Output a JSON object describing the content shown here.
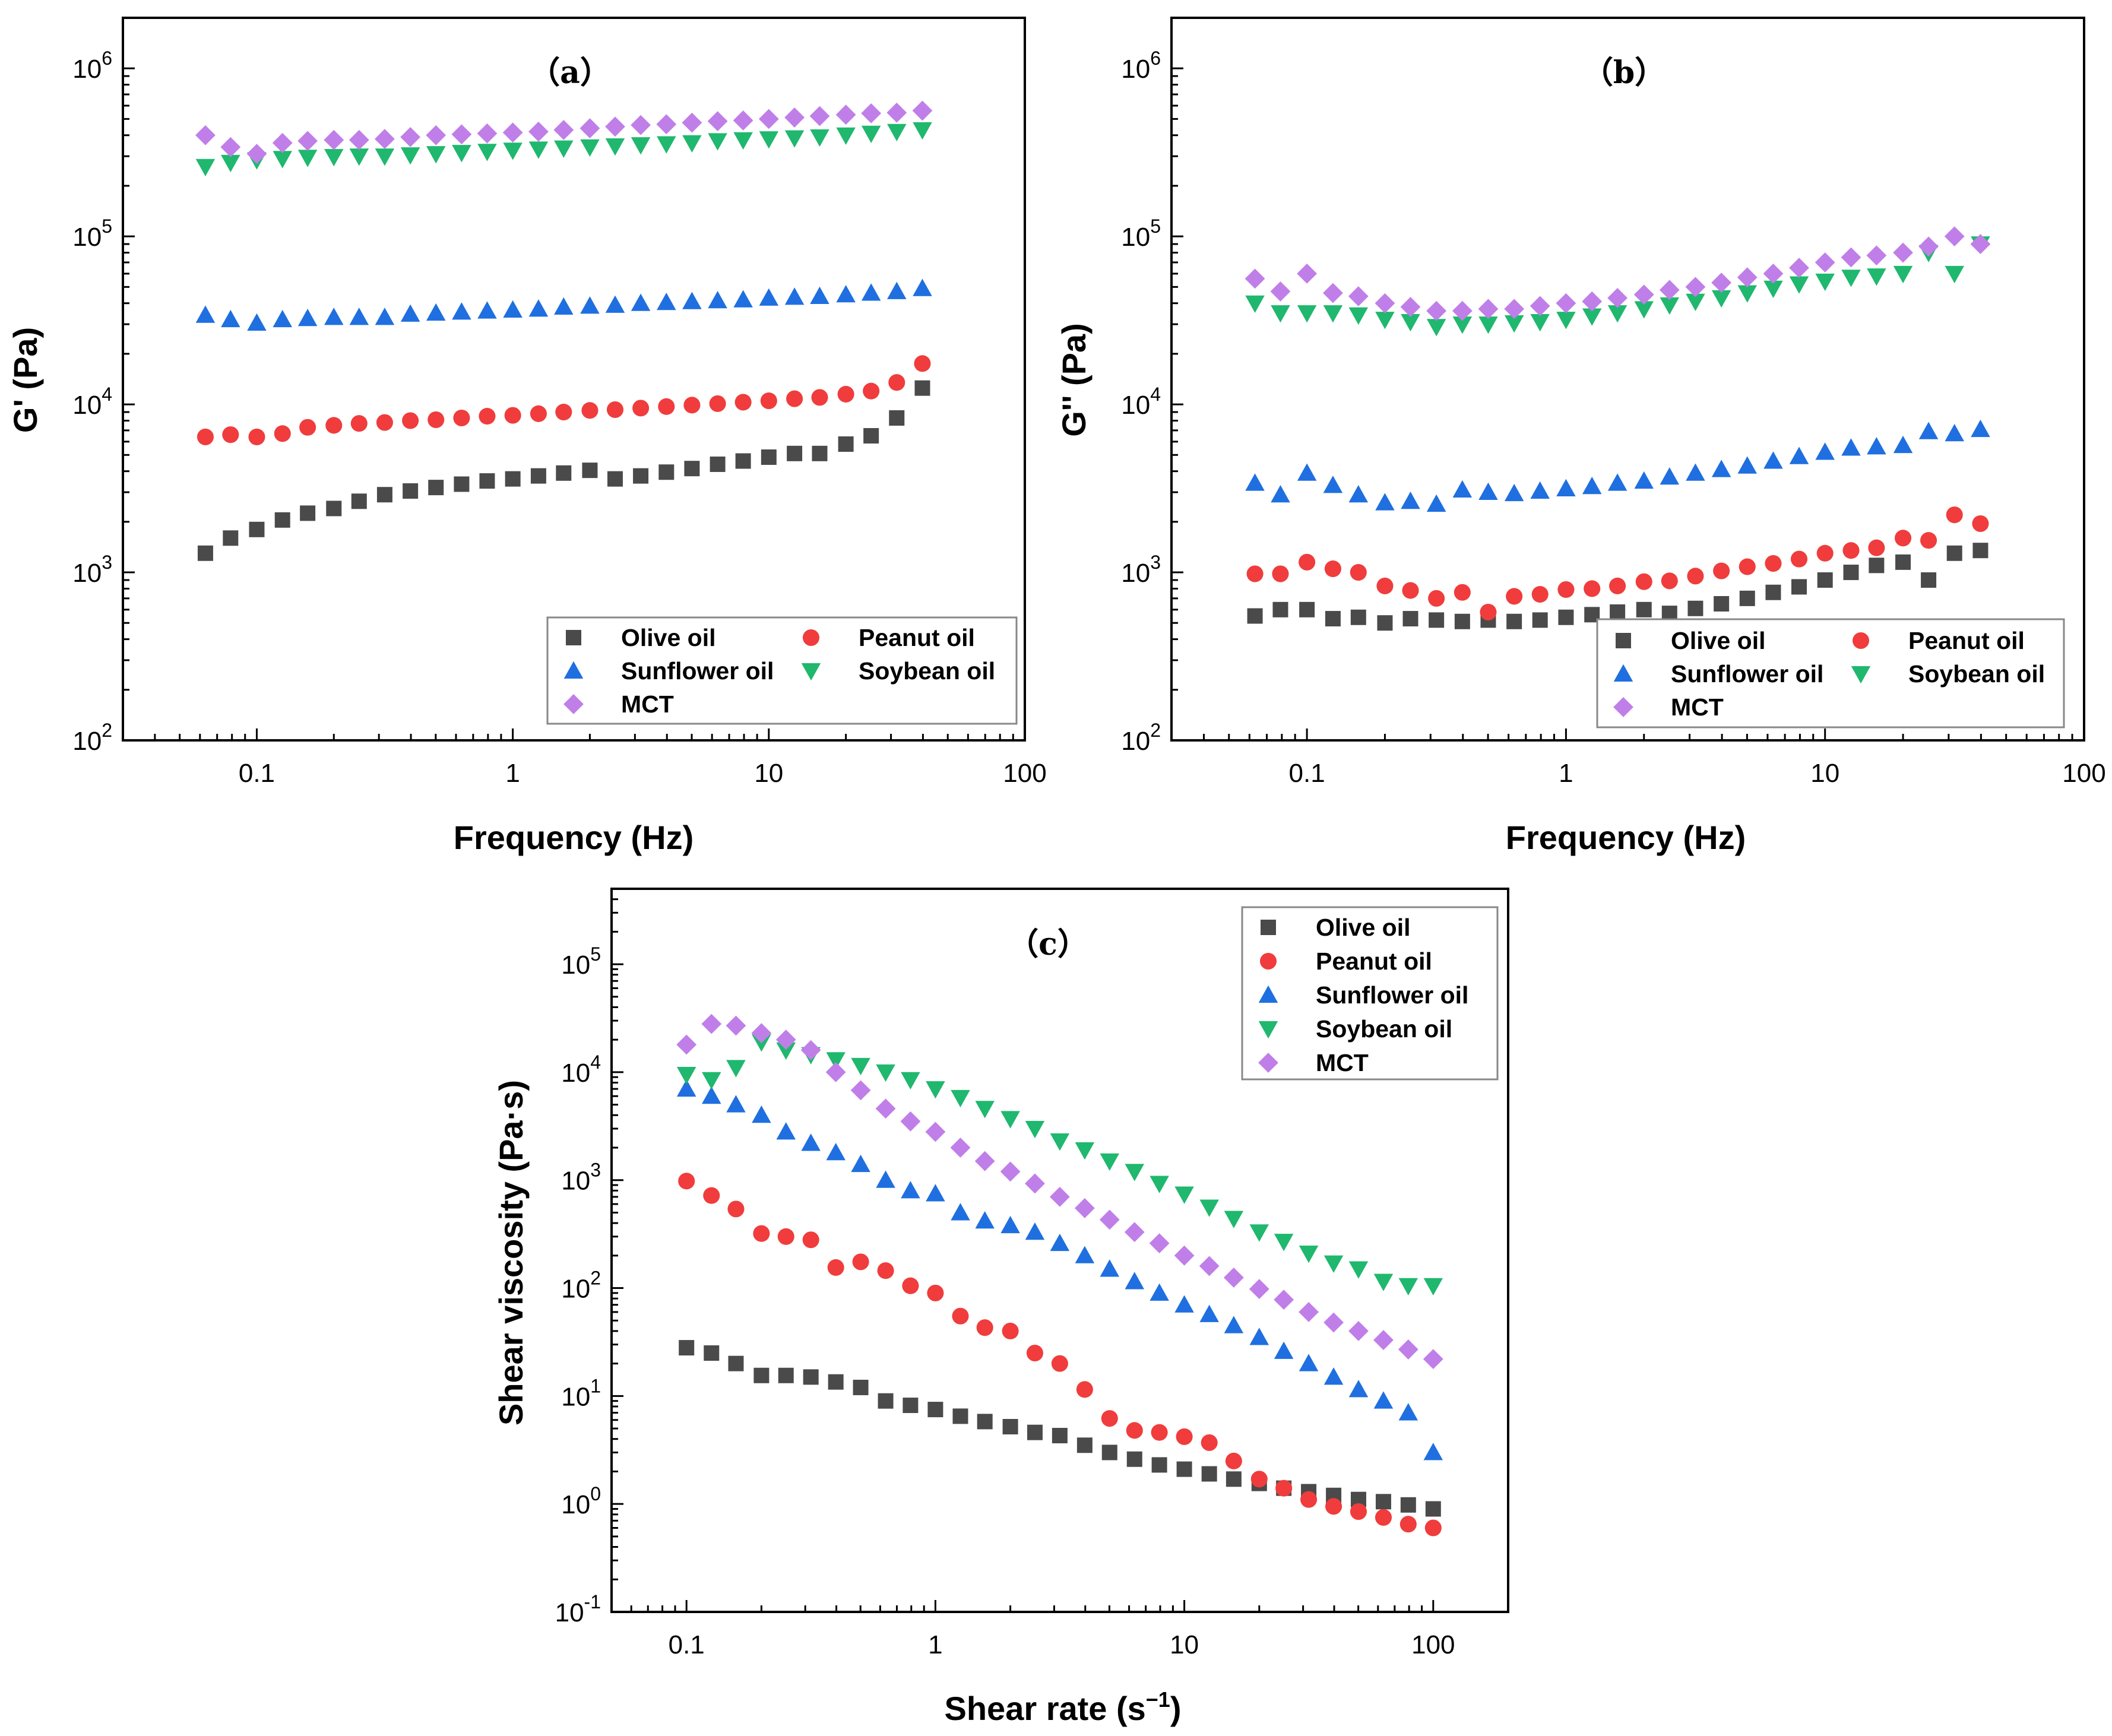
{
  "colors": {
    "olive": "#4a4a4a",
    "peanut": "#f03c3c",
    "sunflower": "#1f6fe0",
    "soybean": "#1fb86e",
    "mct": "#c07fe8"
  },
  "chart_data": [
    {
      "id": "a",
      "type": "scatter",
      "panel_label": "（a）",
      "xlabel": "Frequency (Hz)",
      "ylabel": "G' (Pa)",
      "xscale": "log",
      "yscale": "log",
      "xlim": [
        0.03,
        100
      ],
      "ylim": [
        100,
        2000000
      ],
      "xticks": [
        {
          "value": 0.1,
          "label": "0.1"
        },
        {
          "value": 1,
          "label": "1"
        },
        {
          "value": 10,
          "label": "10"
        },
        {
          "value": 100,
          "label": "100"
        }
      ],
      "yticks": [
        {
          "value": 100,
          "base": "10",
          "exp": "2"
        },
        {
          "value": 1000,
          "base": "10",
          "exp": "3"
        },
        {
          "value": 10000,
          "base": "10",
          "exp": "4"
        },
        {
          "value": 100000,
          "base": "10",
          "exp": "5"
        },
        {
          "value": 1000000,
          "base": "10",
          "exp": "6"
        }
      ],
      "legend_position": "bottom-right",
      "legend_columns": 2,
      "legend_order": [
        "olive",
        "peanut",
        "sunflower",
        "soybean",
        "mct"
      ],
      "x": [
        0.063,
        0.079,
        0.1,
        0.126,
        0.158,
        0.2,
        0.251,
        0.316,
        0.398,
        0.501,
        0.631,
        0.794,
        1.0,
        1.26,
        1.58,
        2.0,
        2.51,
        3.16,
        3.98,
        5.01,
        6.31,
        7.94,
        10.0,
        12.6,
        15.8,
        20.0,
        25.1,
        31.6,
        39.8
      ],
      "series": [
        {
          "key": "olive",
          "name": "Olive oil",
          "marker": "square",
          "values": [
            1300,
            1600,
            1800,
            2050,
            2250,
            2400,
            2650,
            2900,
            3050,
            3200,
            3350,
            3500,
            3600,
            3750,
            3900,
            4050,
            3600,
            3750,
            3950,
            4150,
            4400,
            4600,
            4850,
            5100,
            5100,
            5800,
            6500,
            8300,
            12500
          ]
        },
        {
          "key": "peanut",
          "name": "Peanut oil",
          "marker": "circle",
          "values": [
            6400,
            6600,
            6400,
            6700,
            7300,
            7500,
            7700,
            7800,
            8000,
            8100,
            8300,
            8500,
            8600,
            8800,
            9000,
            9200,
            9300,
            9500,
            9700,
            9900,
            10100,
            10300,
            10500,
            10800,
            11000,
            11500,
            12000,
            13500,
            17500
          ]
        },
        {
          "key": "sunflower",
          "name": "Sunflower oil",
          "marker": "triangle-up",
          "values": [
            34000,
            32000,
            30500,
            32000,
            32500,
            33000,
            33000,
            33000,
            34500,
            35000,
            35500,
            36000,
            36500,
            37000,
            38000,
            38500,
            39000,
            40000,
            40500,
            41000,
            41500,
            42000,
            43000,
            43500,
            44000,
            45000,
            46000,
            47000,
            49000
          ]
        },
        {
          "key": "soybean",
          "name": "Soybean oil",
          "marker": "triangle-down",
          "values": [
            260000,
            275000,
            285000,
            290000,
            295000,
            298000,
            300000,
            300000,
            305000,
            310000,
            315000,
            320000,
            325000,
            330000,
            335000,
            340000,
            345000,
            350000,
            355000,
            360000,
            370000,
            375000,
            380000,
            385000,
            390000,
            400000,
            410000,
            420000,
            430000
          ]
        },
        {
          "key": "mct",
          "name": "MCT",
          "marker": "diamond",
          "values": [
            400000,
            340000,
            310000,
            360000,
            370000,
            375000,
            375000,
            380000,
            390000,
            400000,
            405000,
            410000,
            415000,
            420000,
            430000,
            440000,
            450000,
            460000,
            465000,
            475000,
            485000,
            490000,
            500000,
            510000,
            520000,
            530000,
            540000,
            545000,
            560000
          ]
        }
      ]
    },
    {
      "id": "b",
      "type": "scatter",
      "panel_label": "（b）",
      "xlabel": "Frequency (Hz)",
      "ylabel": "G'' (Pa)",
      "xscale": "log",
      "yscale": "log",
      "xlim": [
        0.03,
        100
      ],
      "ylim": [
        100,
        2000000
      ],
      "xticks": [
        {
          "value": 0.1,
          "label": "0.1"
        },
        {
          "value": 1,
          "label": "1"
        },
        {
          "value": 10,
          "label": "10"
        },
        {
          "value": 100,
          "label": "100"
        }
      ],
      "yticks": [
        {
          "value": 100,
          "base": "10",
          "exp": "2"
        },
        {
          "value": 1000,
          "base": "10",
          "exp": "3"
        },
        {
          "value": 10000,
          "base": "10",
          "exp": "4"
        },
        {
          "value": 100000,
          "base": "10",
          "exp": "5"
        },
        {
          "value": 1000000,
          "base": "10",
          "exp": "6"
        }
      ],
      "legend_position": "bottom-right",
      "legend_columns": 2,
      "legend_order": [
        "olive",
        "peanut",
        "sunflower",
        "soybean",
        "mct"
      ],
      "x": [
        0.063,
        0.079,
        0.1,
        0.126,
        0.158,
        0.2,
        0.251,
        0.316,
        0.398,
        0.501,
        0.631,
        0.794,
        1.0,
        1.26,
        1.58,
        2.0,
        2.51,
        3.16,
        3.98,
        5.01,
        6.31,
        7.94,
        10.0,
        12.6,
        15.8,
        20.0,
        25.1,
        31.6,
        39.8
      ],
      "series": [
        {
          "key": "olive",
          "name": "Olive oil",
          "marker": "square",
          "values": [
            550,
            600,
            600,
            530,
            540,
            500,
            530,
            520,
            510,
            520,
            510,
            520,
            540,
            560,
            580,
            600,
            570,
            610,
            650,
            700,
            760,
            820,
            900,
            1000,
            1100,
            1150,
            900,
            1300,
            1350
          ]
        },
        {
          "key": "peanut",
          "name": "Peanut oil",
          "marker": "circle",
          "values": [
            980,
            980,
            1150,
            1050,
            1000,
            830,
            780,
            700,
            760,
            580,
            720,
            740,
            790,
            800,
            830,
            880,
            890,
            950,
            1020,
            1080,
            1130,
            1200,
            1300,
            1350,
            1400,
            1600,
            1550,
            2200,
            1950
          ]
        },
        {
          "key": "sunflower",
          "name": "Sunflower oil",
          "marker": "triangle-up",
          "values": [
            3400,
            2900,
            3900,
            3300,
            2900,
            2600,
            2650,
            2550,
            3100,
            3000,
            2950,
            3050,
            3150,
            3250,
            3400,
            3500,
            3700,
            3900,
            4100,
            4300,
            4600,
            4900,
            5200,
            5500,
            5600,
            5700,
            6900,
            6700,
            7100
          ]
        },
        {
          "key": "soybean",
          "name": "Soybean oil",
          "marker": "triangle-down",
          "values": [
            40000,
            35000,
            35000,
            35000,
            34000,
            32000,
            31000,
            29000,
            30000,
            30000,
            30500,
            31000,
            32000,
            33500,
            35000,
            37000,
            39000,
            41000,
            43000,
            46000,
            49000,
            52000,
            54000,
            57000,
            58000,
            60000,
            80000,
            60000,
            90000
          ]
        },
        {
          "key": "mct",
          "name": "MCT",
          "marker": "diamond",
          "values": [
            56000,
            47000,
            60000,
            46000,
            44000,
            40000,
            38000,
            36000,
            36000,
            37000,
            37000,
            38500,
            40000,
            41000,
            43000,
            45000,
            48000,
            50000,
            53000,
            57000,
            60000,
            65000,
            70000,
            75000,
            77000,
            80000,
            87000,
            100000,
            90000
          ]
        }
      ]
    },
    {
      "id": "c",
      "type": "scatter",
      "panel_label": "（c）",
      "xlabel": "Shear rate (s",
      "xlabel_sup": "−1",
      "xlabel_tail": ")",
      "ylabel": "Shear viscosity (Pa·s)",
      "xscale": "log",
      "yscale": "log",
      "xlim": [
        0.05,
        200
      ],
      "ylim": [
        0.1,
        500000
      ],
      "xticks": [
        {
          "value": 0.1,
          "label": "0.1"
        },
        {
          "value": 1,
          "label": "1"
        },
        {
          "value": 10,
          "label": "10"
        },
        {
          "value": 100,
          "label": "100"
        }
      ],
      "yticks": [
        {
          "value": 0.1,
          "base": "10",
          "exp": "-1"
        },
        {
          "value": 1,
          "base": "10",
          "exp": "0"
        },
        {
          "value": 10,
          "base": "10",
          "exp": "1"
        },
        {
          "value": 100,
          "base": "10",
          "exp": "2"
        },
        {
          "value": 1000,
          "base": "10",
          "exp": "3"
        },
        {
          "value": 10000,
          "base": "10",
          "exp": "4"
        },
        {
          "value": 100000,
          "base": "10",
          "exp": "5"
        }
      ],
      "legend_position": "top-right",
      "legend_columns": 1,
      "legend_order": [
        "olive",
        "peanut",
        "sunflower",
        "soybean",
        "mct"
      ],
      "x": [
        0.1,
        0.126,
        0.158,
        0.2,
        0.251,
        0.316,
        0.398,
        0.501,
        0.631,
        0.794,
        1.0,
        1.26,
        1.58,
        2.0,
        2.51,
        3.16,
        3.98,
        5.01,
        6.31,
        7.94,
        10.0,
        12.6,
        15.8,
        20.0,
        25.1,
        31.6,
        39.8,
        50.1,
        63.1,
        79.4,
        100
      ],
      "series": [
        {
          "key": "olive",
          "name": "Olive oil",
          "marker": "square",
          "values": [
            28,
            25,
            20,
            15.5,
            15.5,
            15,
            13.5,
            12,
            9,
            8.2,
            7.5,
            6.5,
            5.8,
            5.2,
            4.6,
            4.3,
            3.5,
            3.0,
            2.6,
            2.3,
            2.1,
            1.9,
            1.7,
            1.55,
            1.4,
            1.3,
            1.2,
            1.1,
            1.05,
            0.98,
            0.9
          ]
        },
        {
          "key": "peanut",
          "name": "Peanut oil",
          "marker": "circle",
          "values": [
            980,
            720,
            540,
            320,
            300,
            280,
            155,
            175,
            145,
            105,
            90,
            55,
            43,
            40,
            25,
            20,
            11.5,
            6.2,
            4.8,
            4.6,
            4.2,
            3.7,
            2.5,
            1.7,
            1.4,
            1.1,
            0.95,
            0.85,
            0.75,
            0.65,
            0.6
          ]
        },
        {
          "key": "sunflower",
          "name": "Sunflower oil",
          "marker": "triangle-up",
          "values": [
            7000,
            6000,
            5000,
            4000,
            2800,
            2200,
            1800,
            1400,
            1000,
            800,
            750,
            500,
            420,
            380,
            330,
            260,
            200,
            150,
            115,
            90,
            70,
            57,
            45,
            35,
            26,
            20,
            15,
            11.5,
            9,
            7,
            3
          ]
        },
        {
          "key": "soybean",
          "name": "Soybean oil",
          "marker": "triangle-down",
          "values": [
            9500,
            8500,
            11000,
            19000,
            16000,
            14500,
            13000,
            11500,
            10000,
            8500,
            7000,
            5800,
            4600,
            3700,
            3000,
            2300,
            1900,
            1500,
            1200,
            930,
            740,
            560,
            440,
            330,
            270,
            210,
            170,
            150,
            115,
            105,
            105
          ]
        },
        {
          "key": "mct",
          "name": "MCT",
          "marker": "diamond",
          "values": [
            18000,
            28000,
            27000,
            23000,
            20000,
            16000,
            10000,
            6800,
            4600,
            3500,
            2800,
            2000,
            1500,
            1200,
            930,
            700,
            550,
            430,
            330,
            260,
            200,
            160,
            125,
            98,
            78,
            60,
            48,
            40,
            33,
            27,
            22
          ]
        }
      ]
    }
  ]
}
